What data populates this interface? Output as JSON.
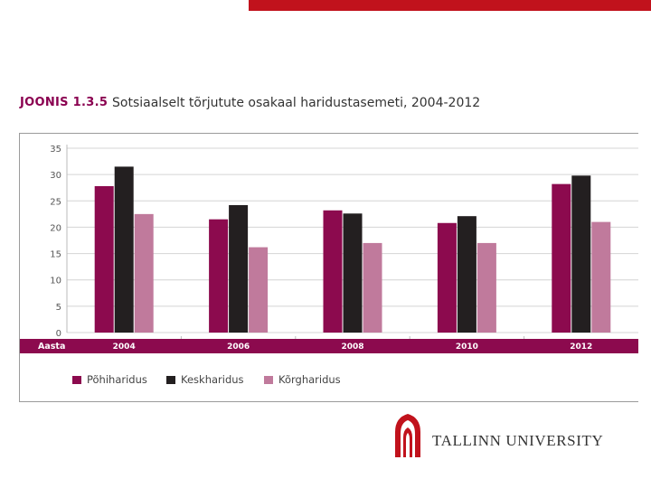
{
  "figure": {
    "label": "JOONIS 1.3.5",
    "title": "Sotsiaalselt tõrjutute osakaal haridustasemeti, 2004-2012"
  },
  "chart_data": {
    "type": "bar",
    "xlabel": "Aasta",
    "categories": [
      "2004",
      "2006",
      "2008",
      "2010",
      "2012"
    ],
    "ylim": [
      0,
      35
    ],
    "yticks": [
      0,
      5,
      10,
      15,
      20,
      25,
      30,
      35
    ],
    "grid": true,
    "legend_position": "bottom",
    "series": [
      {
        "name": "Põhiharidus",
        "color": "#8c0a4e",
        "values": [
          27.8,
          21.5,
          23.2,
          20.8,
          28.2
        ]
      },
      {
        "name": "Keskharidus",
        "color": "#231f20",
        "values": [
          31.5,
          24.2,
          22.6,
          22.1,
          29.8
        ]
      },
      {
        "name": "Kõrgharidus",
        "color": "#c07a9c",
        "values": [
          22.5,
          16.2,
          17.0,
          17.0,
          21.0
        ]
      }
    ]
  },
  "colors": {
    "accent_bar": "#c1121c",
    "axis_band": "#8c0a4e"
  },
  "logo": {
    "text": "TALLINN UNIVERSITY",
    "icon": "tallinn-university-arch-icon"
  }
}
